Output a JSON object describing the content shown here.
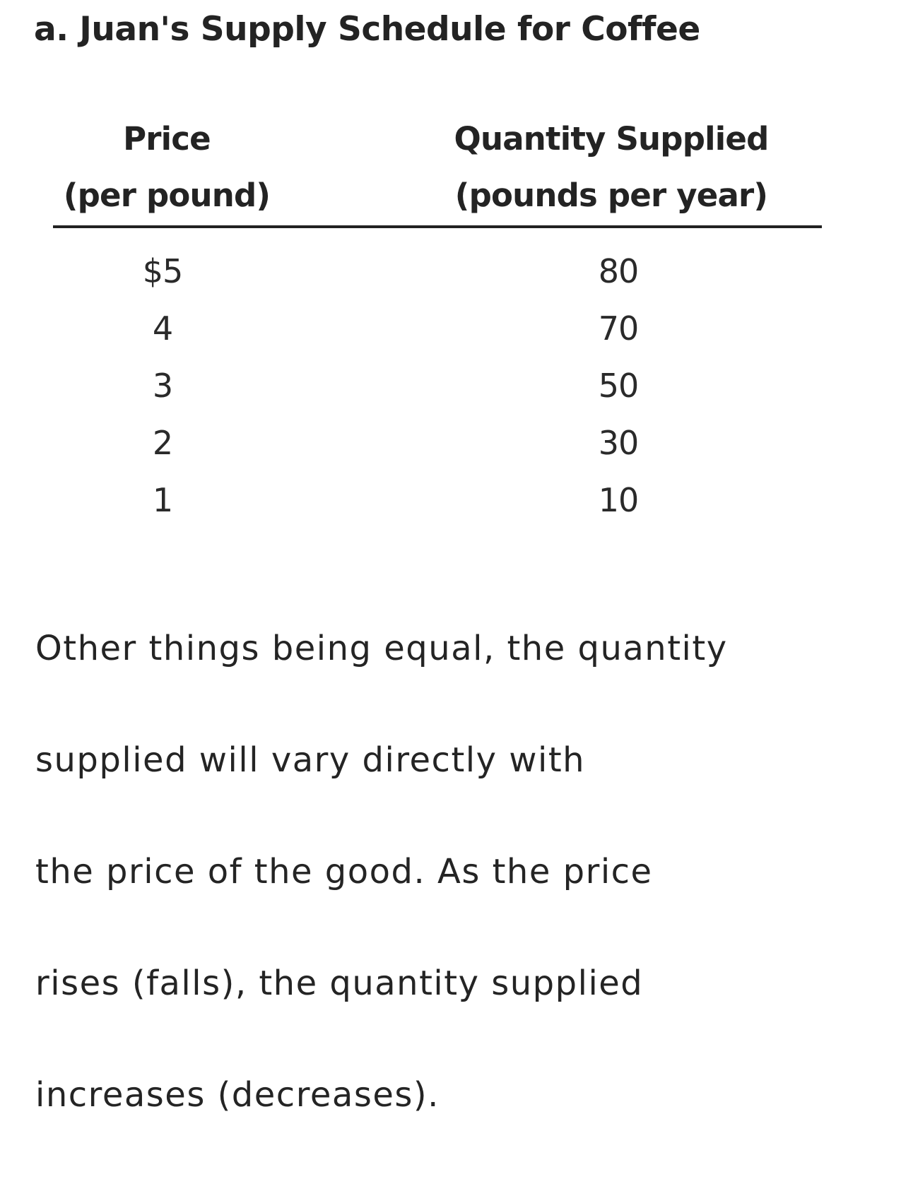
{
  "title": "a. Juan's Supply Schedule for Coffee",
  "table": {
    "columns": [
      {
        "line1": "Price",
        "line2": "(per pound)"
      },
      {
        "line1": "Quantity Supplied",
        "line2": "(pounds per year)"
      }
    ],
    "rows": [
      {
        "price": "$5",
        "quantity": "80"
      },
      {
        "price": "4",
        "quantity": "70"
      },
      {
        "price": "3",
        "quantity": "50"
      },
      {
        "price": "2",
        "quantity": "30"
      },
      {
        "price": "1",
        "quantity": "10"
      }
    ]
  },
  "note": {
    "lines": [
      "Other things being equal, the quantity",
      "supplied will vary directly with",
      "the price of the good. As the price",
      "rises (falls), the quantity supplied",
      "increases (decreases)."
    ]
  }
}
